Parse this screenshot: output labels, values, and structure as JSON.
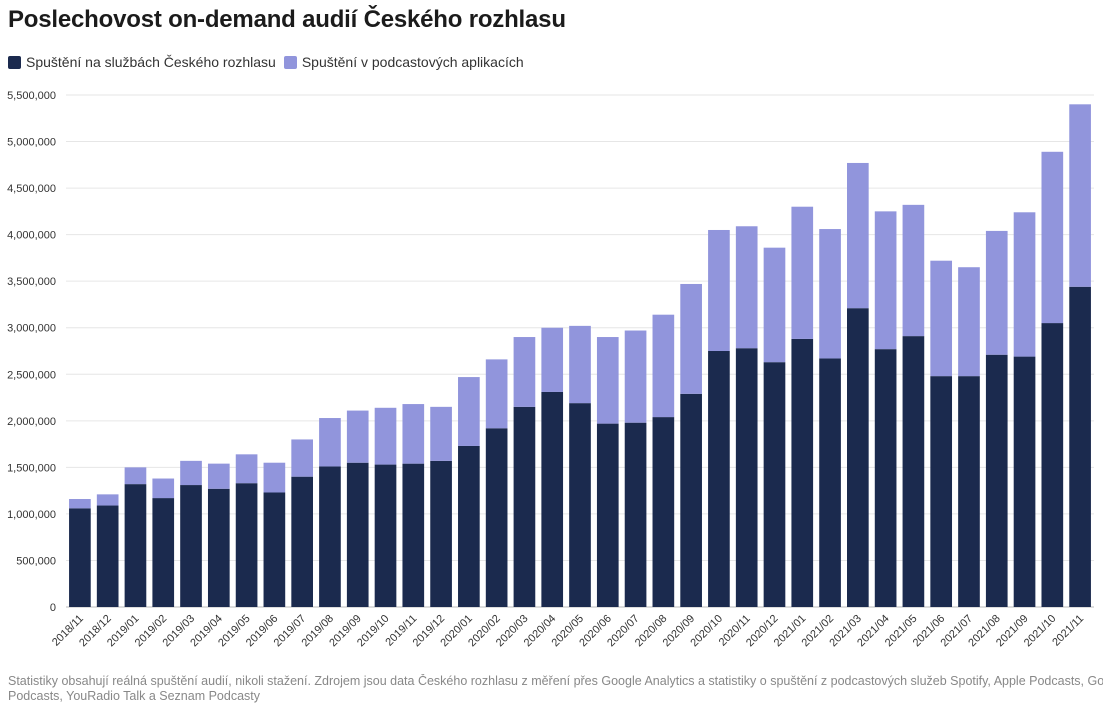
{
  "page": {
    "title": "Poslechovost on-demand audií Českého rozhlasu",
    "footnote_line1": "Statistiky obsahují reálná spuštění audií, nikoli stažení. Zdrojem jsou data Českého rozhlasu z měření přes Google Analytics a statistiky o spuštění z podcastových služeb Spotify, Apple Podcasts, Google",
    "footnote_line2": "Podcasts, YouRadio Talk a Seznam Podcasty"
  },
  "chart_data": {
    "type": "bar",
    "stacked": true,
    "title": "Poslechovost on-demand audií Českého rozhlasu",
    "xlabel": "",
    "ylabel": "",
    "ylim": [
      0,
      5500000
    ],
    "yticks": [
      0,
      500000,
      1000000,
      1500000,
      2000000,
      2500000,
      3000000,
      3500000,
      4000000,
      4500000,
      5000000,
      5500000
    ],
    "ytick_labels": [
      "0",
      "500,000",
      "1,000,000",
      "1,500,000",
      "2,000,000",
      "2,500,000",
      "3,000,000",
      "3,500,000",
      "4,000,000",
      "4,500,000",
      "5,000,000",
      "5,500,000"
    ],
    "grid": true,
    "legend_position": "top-left",
    "categories": [
      "2018/11",
      "2018/12",
      "2019/01",
      "2019/02",
      "2019/03",
      "2019/04",
      "2019/05",
      "2019/06",
      "2019/07",
      "2019/08",
      "2019/09",
      "2019/10",
      "2019/11",
      "2019/12",
      "2020/01",
      "2020/02",
      "2020/03",
      "2020/04",
      "2020/05",
      "2020/06",
      "2020/07",
      "2020/08",
      "2020/09",
      "2020/10",
      "2020/11",
      "2020/12",
      "2021/01",
      "2021/02",
      "2021/03",
      "2021/04",
      "2021/05",
      "2021/06",
      "2021/07",
      "2021/08",
      "2021/09",
      "2021/10",
      "2021/11"
    ],
    "series": [
      {
        "name": "Spuštění na službách Českého rozhlasu",
        "color": "#1b2a4e",
        "values": [
          1060000,
          1090000,
          1320000,
          1170000,
          1310000,
          1270000,
          1330000,
          1230000,
          1400000,
          1510000,
          1550000,
          1530000,
          1540000,
          1570000,
          1730000,
          1920000,
          2150000,
          2310000,
          2190000,
          1970000,
          1980000,
          2040000,
          2290000,
          2750000,
          2780000,
          2630000,
          2880000,
          2670000,
          3210000,
          2770000,
          2910000,
          2480000,
          2480000,
          2710000,
          2690000,
          3050000,
          3440000
        ]
      },
      {
        "name": "Spuštění v podcastových aplikacích",
        "color": "#9195dc",
        "values": [
          100000,
          120000,
          180000,
          210000,
          260000,
          270000,
          310000,
          320000,
          400000,
          520000,
          560000,
          610000,
          640000,
          580000,
          740000,
          740000,
          750000,
          690000,
          830000,
          930000,
          990000,
          1100000,
          1180000,
          1300000,
          1310000,
          1230000,
          1420000,
          1390000,
          1560000,
          1480000,
          1410000,
          1240000,
          1170000,
          1330000,
          1550000,
          1840000,
          1960000
        ]
      }
    ]
  }
}
